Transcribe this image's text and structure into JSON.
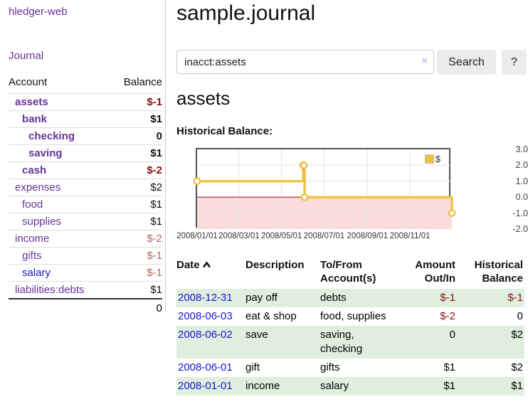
{
  "sidebar": {
    "app_title": "hledger-web",
    "journal_label": "Journal",
    "table": {
      "account_header": "Account",
      "balance_header": "Balance",
      "accounts": [
        {
          "name": "assets",
          "balance": "$-1",
          "indent": 0,
          "bold": true,
          "negative": "strong"
        },
        {
          "name": "bank",
          "balance": "$1",
          "indent": 1,
          "bold": true,
          "negative": "none"
        },
        {
          "name": "checking",
          "balance": "0",
          "indent": 2,
          "bold": true,
          "negative": "none"
        },
        {
          "name": "saving",
          "balance": "$1",
          "indent": 2,
          "bold": true,
          "negative": "none"
        },
        {
          "name": "cash",
          "balance": "$-2",
          "indent": 1,
          "bold": true,
          "negative": "strong"
        },
        {
          "name": "expenses",
          "balance": "$2",
          "indent": 0,
          "bold": false,
          "negative": "none"
        },
        {
          "name": "food",
          "balance": "$1",
          "indent": 1,
          "bold": false,
          "negative": "none"
        },
        {
          "name": "supplies",
          "balance": "$1",
          "indent": 1,
          "bold": false,
          "negative": "none"
        },
        {
          "name": "income",
          "balance": "$-2",
          "indent": 0,
          "bold": false,
          "negative": "soft"
        },
        {
          "name": "gifts",
          "balance": "$-1",
          "indent": 1,
          "bold": false,
          "negative": "soft"
        },
        {
          "name": "salary",
          "balance": "$-1",
          "indent": 1,
          "bold": false,
          "negative": "soft",
          "link_style": "unvisited"
        },
        {
          "name": "liabilities:debts",
          "balance": "$1",
          "indent": 0,
          "bold": false,
          "negative": "none"
        }
      ],
      "total": "0"
    }
  },
  "main": {
    "title": "sample.journal",
    "search": {
      "value": "inacct:assets",
      "clear_icon": "×",
      "button_label": "Search",
      "help_label": "?"
    },
    "account_heading": "assets",
    "chart_label": "Historical Balance:"
  },
  "chart_data": {
    "type": "line",
    "step": true,
    "title": "Historical Balance",
    "series": [
      {
        "name": "$",
        "color": "#edc240",
        "points": [
          [
            "2008-01-01",
            1
          ],
          [
            "2008-06-01",
            2
          ],
          [
            "2008-06-02",
            2
          ],
          [
            "2008-06-03",
            0
          ],
          [
            "2008-12-31",
            -1
          ]
        ]
      }
    ],
    "xrange": [
      "2008-01-01",
      "2008-12-31"
    ],
    "ylim": [
      -2,
      3
    ],
    "yticks": [
      "3.0",
      "2.0",
      "1.0",
      "0.0",
      "-1.0",
      "-2.0"
    ],
    "xticks": [
      "2008/01/01",
      "2008/03/01",
      "2008/05/01",
      "2008/07/01",
      "2008/09/01",
      "2008/11/01"
    ],
    "legend_position": "top-right",
    "grid": true,
    "negative_region_color": "#fbdcdc",
    "zero_line_color": "#992222",
    "grid_color": "#e4e4e4"
  },
  "register": {
    "headers": {
      "date": "Date",
      "sort_icon": "chevron-up",
      "description": "Description",
      "tofrom": "To/From Account(s)",
      "amount": "Amount Out/In",
      "balance": "Historical Balance"
    },
    "rows": [
      {
        "date": "2008-12-31",
        "description": "pay off",
        "accounts": "debts",
        "amount": "$-1",
        "balance": "$-1",
        "amount_neg": true,
        "balance_neg": true,
        "shaded": true
      },
      {
        "date": "2008-06-03",
        "description": "eat & shop",
        "accounts": "food, supplies",
        "amount": "$-2",
        "balance": "0",
        "amount_neg": true,
        "balance_neg": false,
        "shaded": false
      },
      {
        "date": "2008-06-02",
        "description": "save",
        "accounts": "saving, checking",
        "amount": "0",
        "balance": "$2",
        "amount_neg": false,
        "balance_neg": false,
        "shaded": true
      },
      {
        "date": "2008-06-01",
        "description": "gift",
        "accounts": "gifts",
        "amount": "$1",
        "balance": "$2",
        "amount_neg": false,
        "balance_neg": false,
        "shaded": false
      },
      {
        "date": "2008-01-01",
        "description": "income",
        "accounts": "salary",
        "amount": "$1",
        "balance": "$1",
        "amount_neg": false,
        "balance_neg": false,
        "shaded": true
      }
    ]
  }
}
